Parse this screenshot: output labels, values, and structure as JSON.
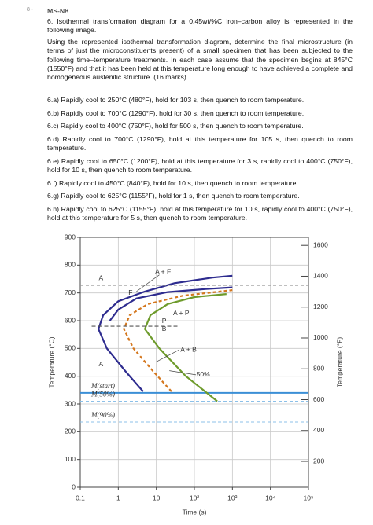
{
  "document": {
    "marker": "8 -",
    "heading": "MS-N8",
    "intro": "6. Isothermal transformation diagram for a 0.45wt/%C iron–carbon alloy is represented in the following image.",
    "instructions": "Using the represented isothermal transformation diagram, determine the final microstructure (in terms of just the microconstituents present) of a small specimen that has been subjected to the following time–temperature treatments. In each case assume that the specimen begins at 845°C (1550°F) and that it has been held at this temperature long enough to have achieved a complete and homogeneous austenitic structure. (16 marks)",
    "items": [
      "6.a) Rapidly cool to 250°C (480°F), hold for 103 s, then quench to room temperature.",
      "6.b) Rapidly cool to 700°C (1290°F), hold for 30 s, then quench to room temperature.",
      "6.c) Rapidly cool to 400°C (750°F), hold for 500 s, then quench to room temperature.",
      "6.d) Rapidly cool to 700°C (1290°F), hold at this temperature for 105 s, then quench to room temperature.",
      "6.e) Rapidly cool to 650°C (1200°F), hold at this temperature for 3 s, rapidly cool to 400°C (750°F), hold for 10 s, then quench to room temperature.",
      "6.f) Rapidly cool to 450°C (840°F), hold for 10 s, then quench to room temperature.",
      "6.g) Rapidly cool to 625°C (1155°F), hold for 1 s, then quench to room temperature.",
      "6.h) Rapidly cool to 625°C (1155°F), hold at this temperature for 10 s, rapidly cool to 400°C (750°F), hold at this temperature for 5 s, then quench to room temperature."
    ]
  },
  "chart_data": {
    "type": "line",
    "x_label": "Time (s)",
    "y_label": "Temperature (°C)",
    "y2_label": "Temperature (°F)",
    "x_scale": "log",
    "grid": true,
    "xlim": [
      0.1,
      100000
    ],
    "xticks": [
      0.1,
      1,
      10,
      {
        "value": 100,
        "label": "10²"
      },
      {
        "value": 1000,
        "label": "10³"
      },
      {
        "value": 10000,
        "label": "10⁴"
      },
      {
        "value": 100000,
        "label": "10⁵"
      }
    ],
    "ylim": [
      0,
      900
    ],
    "yticks": [
      0,
      100,
      200,
      300,
      400,
      500,
      600,
      700,
      800,
      900
    ],
    "y2lim": [
      32,
      1652
    ],
    "y2ticks": [
      200,
      400,
      600,
      800,
      1000,
      1200,
      1400,
      1600
    ],
    "series": [
      {
        "color": "#2e2c8f",
        "dash": "none",
        "x": [
          4.5,
          1.5,
          0.5,
          0.3,
          0.4,
          1,
          5,
          30,
          300,
          1000
        ],
        "values": [
          345,
          420,
          500,
          570,
          620,
          670,
          705,
          735,
          755,
          762
        ]
      },
      {
        "color": "#2e2c8f",
        "dash": "none",
        "x": [
          0.6,
          1,
          3,
          20,
          200,
          1000
        ],
        "values": [
          600,
          640,
          680,
          703,
          714,
          720
        ]
      },
      {
        "color": "#d4771e",
        "dash": "4 3",
        "x": [
          25,
          8,
          2.5,
          1.4,
          2,
          6,
          50,
          1000
        ],
        "values": [
          345,
          420,
          500,
          570,
          620,
          660,
          690,
          710
        ]
      },
      {
        "color": "#6e9b2c",
        "dash": "none",
        "x": [
          400,
          60,
          12,
          5,
          7,
          20,
          100,
          700
        ],
        "values": [
          310,
          400,
          500,
          570,
          620,
          660,
          685,
          696
        ]
      },
      {
        "color": "#999999",
        "dash": "4 3",
        "x": [
          0.1,
          100000
        ],
        "values": [
          727,
          727
        ]
      },
      {
        "color": "#555555",
        "dash": "5 3",
        "x": [
          0.2,
          40
        ],
        "values": [
          580,
          580
        ]
      }
    ],
    "m_lines": [
      {
        "label": "M(start)",
        "value": 340,
        "color": "#3b8fd6",
        "dash": "none"
      },
      {
        "label": "M(50%)",
        "value": 310,
        "color": "#8cc0e8",
        "dash": "4 3"
      },
      {
        "label": "M(90%)",
        "value": 235,
        "color": "#8cc0e8",
        "dash": "4 3"
      }
    ],
    "annotations": [
      "A",
      "A + F",
      "F",
      "A + P",
      "P",
      "B",
      "A + B",
      "A",
      "50%"
    ]
  }
}
